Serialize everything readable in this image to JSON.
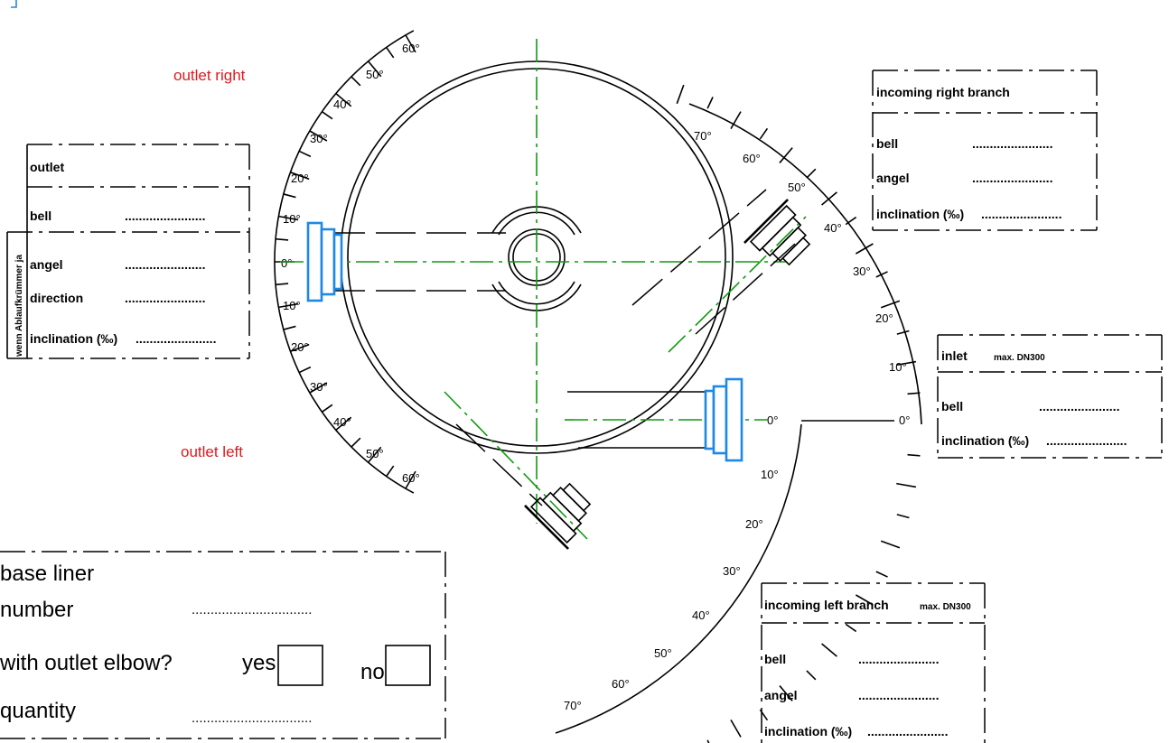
{
  "labels": {
    "outlet_right": "outlet right",
    "outlet_left": "outlet left",
    "zero": "0°"
  },
  "outlet_box": {
    "title": "outlet",
    "bell": "bell",
    "angel": "angel",
    "direction": "direction",
    "inclination": "inclination (‰)",
    "side_note": "wenn Ablaufkrümmer ja",
    "dots": "......................."
  },
  "right_branch_box": {
    "title": "incoming right branch",
    "bell": "bell",
    "angel": "angel",
    "inclination": "inclination (‰)",
    "dots": "......................."
  },
  "inlet_box": {
    "title": "inlet",
    "max": "max. DN300",
    "bell": "bell",
    "inclination": "inclination (‰)",
    "dots": "......................."
  },
  "left_branch_box": {
    "title": "incoming left branch",
    "max": "max. DN300",
    "bell": "bell",
    "angel": "angel",
    "inclination": "inclination (‰)",
    "dots": "......................."
  },
  "base_box": {
    "title": "base liner",
    "number": "number",
    "elbow": "with outlet elbow?",
    "yes": "yes",
    "no": "no",
    "quantity": "quantity",
    "dots": "................................"
  },
  "scales": {
    "left": [
      "60°",
      "50°",
      "40°",
      "30°",
      "20°",
      "10°",
      "0°",
      "10°",
      "20°",
      "30°",
      "40°",
      "50°",
      "60°"
    ],
    "right_upper": [
      "70°",
      "60°",
      "50°",
      "40°",
      "30°",
      "20°",
      "10°"
    ],
    "right_lower": [
      "10°",
      "20°",
      "30°",
      "40°",
      "50°",
      "60°",
      "70°"
    ]
  },
  "colors": {
    "centerline": "#119a11",
    "pipe": "#1e88e5",
    "note": "#e0191e"
  }
}
